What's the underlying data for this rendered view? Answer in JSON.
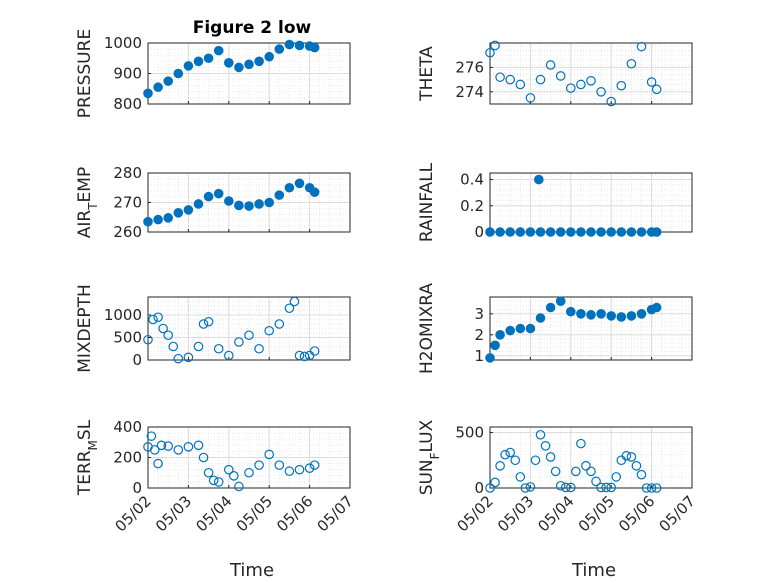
{
  "title": "Figure 2 low",
  "xlabel": "Time",
  "x_ticks": [
    "05/02",
    "05/03",
    "05/04",
    "05/05",
    "05/06",
    "05/07"
  ],
  "colors": {
    "marker": "#0072bd",
    "axis": "#262626",
    "grid": "#dcdcdc"
  },
  "chart_data": [
    {
      "type": "scatter",
      "ylabel": "PRESSURE",
      "ylabel_sub": "",
      "ylabel_post": "",
      "x_range": [
        "05/02",
        "05/07"
      ],
      "ylim": [
        800,
        1000
      ],
      "yticks": [
        800,
        900,
        1000
      ],
      "ytick_labels": [
        "800",
        "900",
        "1000"
      ],
      "grid": true,
      "filled": true,
      "x": [
        "05/02 00:00",
        "05/02 06:00",
        "05/02 12:00",
        "05/02 18:00",
        "05/03 00:00",
        "05/03 06:00",
        "05/03 12:00",
        "05/03 18:00",
        "05/04 00:00",
        "05/04 06:00",
        "05/04 12:00",
        "05/04 18:00",
        "05/05 00:00",
        "05/05 06:00",
        "05/05 12:00",
        "05/05 18:00",
        "05/06 00:00",
        "05/06 03:00"
      ],
      "y": [
        835,
        855,
        875,
        900,
        925,
        940,
        950,
        975,
        935,
        920,
        930,
        940,
        955,
        980,
        995,
        992,
        990,
        985
      ]
    },
    {
      "type": "scatter",
      "ylabel": "THETA",
      "ylabel_sub": "",
      "ylabel_post": "",
      "x_range": [
        "05/02",
        "05/07"
      ],
      "ylim": [
        273,
        278
      ],
      "yticks": [
        274,
        276
      ],
      "ytick_labels": [
        "274",
        "276"
      ],
      "grid": true,
      "filled": false,
      "x": [
        "05/02 00:00",
        "05/02 03:00",
        "05/02 06:00",
        "05/02 12:00",
        "05/02 18:00",
        "05/03 00:00",
        "05/03 06:00",
        "05/03 12:00",
        "05/03 18:00",
        "05/04 00:00",
        "05/04 06:00",
        "05/04 12:00",
        "05/04 18:00",
        "05/05 00:00",
        "05/05 06:00",
        "05/05 12:00",
        "05/05 18:00",
        "05/06 00:00",
        "05/06 03:00"
      ],
      "y": [
        277.2,
        277.8,
        275.2,
        275.0,
        274.6,
        273.5,
        275.0,
        276.2,
        275.3,
        274.3,
        274.6,
        274.9,
        274.0,
        273.2,
        274.5,
        276.3,
        277.7,
        274.8,
        274.2
      ]
    },
    {
      "type": "scatter",
      "ylabel": "AIR",
      "ylabel_sub": "T",
      "ylabel_post": "EMP",
      "x_range": [
        "05/02",
        "05/07"
      ],
      "ylim": [
        260,
        280
      ],
      "yticks": [
        260,
        270,
        280
      ],
      "ytick_labels": [
        "260",
        "270",
        "280"
      ],
      "grid": true,
      "filled": true,
      "x": [
        "05/02 00:00",
        "05/02 06:00",
        "05/02 12:00",
        "05/02 18:00",
        "05/03 00:00",
        "05/03 06:00",
        "05/03 12:00",
        "05/03 18:00",
        "05/04 00:00",
        "05/04 06:00",
        "05/04 12:00",
        "05/04 18:00",
        "05/05 00:00",
        "05/05 06:00",
        "05/05 12:00",
        "05/05 18:00",
        "05/06 00:00",
        "05/06 03:00"
      ],
      "y": [
        263.5,
        264.2,
        264.8,
        266.5,
        267.5,
        269.5,
        272.0,
        273.0,
        270.5,
        269.0,
        268.8,
        269.5,
        270.0,
        272.5,
        275.0,
        276.5,
        275.0,
        273.5
      ]
    },
    {
      "type": "scatter",
      "ylabel": "RAINFALL",
      "ylabel_sub": "",
      "ylabel_post": "",
      "x_range": [
        "05/02",
        "05/07"
      ],
      "ylim": [
        0,
        0.45
      ],
      "yticks": [
        0,
        0.2,
        0.4
      ],
      "ytick_labels": [
        "0",
        "0.2",
        "0.4"
      ],
      "grid": true,
      "filled": true,
      "x": [
        "05/02 00:00",
        "05/02 06:00",
        "05/02 12:00",
        "05/02 18:00",
        "05/03 00:00",
        "05/03 05:00",
        "05/03 06:00",
        "05/03 12:00",
        "05/03 18:00",
        "05/04 00:00",
        "05/04 06:00",
        "05/04 12:00",
        "05/04 18:00",
        "05/05 00:00",
        "05/05 06:00",
        "05/05 12:00",
        "05/05 18:00",
        "05/06 00:00",
        "05/06 03:00"
      ],
      "y": [
        0,
        0,
        0,
        0,
        0,
        0.4,
        0,
        0,
        0,
        0,
        0,
        0,
        0,
        0,
        0,
        0,
        0,
        0,
        0
      ]
    },
    {
      "type": "scatter",
      "ylabel": "MIXDEPTH",
      "ylabel_sub": "",
      "ylabel_post": "",
      "x_range": [
        "05/02",
        "05/07"
      ],
      "ylim": [
        0,
        1400
      ],
      "yticks": [
        0,
        500,
        1000
      ],
      "ytick_labels": [
        "0",
        "500",
        "1000"
      ],
      "grid": true,
      "filled": false,
      "x": [
        "05/02 00:00",
        "05/02 03:00",
        "05/02 06:00",
        "05/02 09:00",
        "05/02 12:00",
        "05/02 15:00",
        "05/02 18:00",
        "05/03 00:00",
        "05/03 06:00",
        "05/03 09:00",
        "05/03 12:00",
        "05/03 18:00",
        "05/04 00:00",
        "05/04 06:00",
        "05/04 12:00",
        "05/04 18:00",
        "05/05 00:00",
        "05/05 06:00",
        "05/05 12:00",
        "05/05 15:00",
        "05/05 18:00",
        "05/05 21:00",
        "05/06 00:00",
        "05/06 03:00"
      ],
      "y": [
        450,
        900,
        950,
        700,
        550,
        300,
        30,
        60,
        300,
        800,
        850,
        250,
        100,
        400,
        550,
        250,
        650,
        800,
        1150,
        1300,
        100,
        80,
        100,
        200
      ]
    },
    {
      "type": "scatter",
      "ylabel": "H2OMIXRA",
      "ylabel_sub": "",
      "ylabel_post": "",
      "x_range": [
        "05/02",
        "05/07"
      ],
      "ylim": [
        0.8,
        3.8
      ],
      "yticks": [
        1,
        2,
        3
      ],
      "ytick_labels": [
        "1",
        "2",
        "3"
      ],
      "grid": true,
      "filled": true,
      "x": [
        "05/02 00:00",
        "05/02 03:00",
        "05/02 06:00",
        "05/02 12:00",
        "05/02 18:00",
        "05/03 00:00",
        "05/03 06:00",
        "05/03 12:00",
        "05/03 18:00",
        "05/04 00:00",
        "05/04 06:00",
        "05/04 12:00",
        "05/04 18:00",
        "05/05 00:00",
        "05/05 06:00",
        "05/05 12:00",
        "05/05 18:00",
        "05/06 00:00",
        "05/06 03:00"
      ],
      "y": [
        0.9,
        1.5,
        2.0,
        2.2,
        2.3,
        2.3,
        2.8,
        3.3,
        3.6,
        3.1,
        3.0,
        2.95,
        3.0,
        2.9,
        2.85,
        2.9,
        3.0,
        3.2,
        3.3
      ]
    },
    {
      "type": "scatter",
      "ylabel": "TERR",
      "ylabel_sub": "M",
      "ylabel_post": "SL",
      "x_range": [
        "05/02",
        "05/07"
      ],
      "ylim": [
        0,
        400
      ],
      "yticks": [
        0,
        200,
        400
      ],
      "ytick_labels": [
        "0",
        "200",
        "400"
      ],
      "grid": true,
      "filled": false,
      "x": [
        "05/02 00:00",
        "05/02 02:00",
        "05/02 04:00",
        "05/02 06:00",
        "05/02 08:00",
        "05/02 12:00",
        "05/02 18:00",
        "05/03 00:00",
        "05/03 06:00",
        "05/03 09:00",
        "05/03 12:00",
        "05/03 15:00",
        "05/03 18:00",
        "05/04 00:00",
        "05/04 03:00",
        "05/04 06:00",
        "05/04 12:00",
        "05/04 18:00",
        "05/05 00:00",
        "05/05 06:00",
        "05/05 12:00",
        "05/05 18:00",
        "05/06 00:00",
        "05/06 03:00"
      ],
      "y": [
        270,
        340,
        250,
        160,
        280,
        275,
        250,
        270,
        280,
        200,
        100,
        50,
        40,
        120,
        80,
        10,
        100,
        150,
        220,
        150,
        110,
        120,
        130,
        150
      ]
    },
    {
      "type": "scatter",
      "ylabel": "SUN",
      "ylabel_sub": "F",
      "ylabel_post": "LUX",
      "x_range": [
        "05/02",
        "05/07"
      ],
      "ylim": [
        0,
        550
      ],
      "yticks": [
        0,
        500
      ],
      "ytick_labels": [
        "0",
        "500"
      ],
      "grid": true,
      "filled": false,
      "x": [
        "05/02 00:00",
        "05/02 03:00",
        "05/02 06:00",
        "05/02 09:00",
        "05/02 12:00",
        "05/02 15:00",
        "05/02 18:00",
        "05/02 21:00",
        "05/03 00:00",
        "05/03 03:00",
        "05/03 06:00",
        "05/03 09:00",
        "05/03 12:00",
        "05/03 15:00",
        "05/03 18:00",
        "05/03 21:00",
        "05/04 00:00",
        "05/04 03:00",
        "05/04 06:00",
        "05/04 09:00",
        "05/04 12:00",
        "05/04 15:00",
        "05/04 18:00",
        "05/04 21:00",
        "05/05 00:00",
        "05/05 03:00",
        "05/05 06:00",
        "05/05 09:00",
        "05/05 12:00",
        "05/05 15:00",
        "05/05 18:00",
        "05/05 21:00",
        "05/06 00:00",
        "05/06 03:00"
      ],
      "y": [
        0,
        50,
        200,
        300,
        320,
        250,
        100,
        0,
        10,
        250,
        480,
        380,
        280,
        150,
        20,
        5,
        5,
        150,
        400,
        200,
        150,
        60,
        5,
        5,
        5,
        100,
        250,
        290,
        280,
        200,
        120,
        0,
        0,
        0
      ]
    }
  ]
}
